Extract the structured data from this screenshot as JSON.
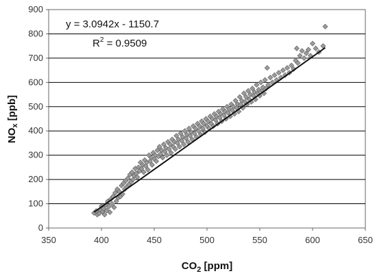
{
  "chart_data": {
    "type": "scatter",
    "title": "",
    "xlabel_main": "CO",
    "xlabel_sub": "2",
    "xlabel_unit": " [ppm]",
    "ylabel_main": "NO",
    "ylabel_sub": "x",
    "ylabel_unit": " [ppb]",
    "xlim": [
      350,
      650
    ],
    "ylim": [
      0,
      900
    ],
    "xticks": [
      350,
      400,
      450,
      500,
      550,
      600,
      650
    ],
    "yticks": [
      0,
      100,
      200,
      300,
      400,
      500,
      600,
      700,
      800,
      900
    ],
    "grid": "horizontal",
    "marker_color": "#9b9b9b",
    "marker_edge_color": "#5a5a5a",
    "trendline": {
      "slope": 3.0942,
      "intercept": -1150.7,
      "x_range": [
        393,
        612
      ],
      "equation_label": "y = 3.0942x - 1150.7",
      "r2_prefix": "R",
      "r2_sup": "2",
      "r2_value": " = 0.9509"
    },
    "series": [
      {
        "points": [
          [
            393,
            62
          ],
          [
            395,
            70
          ],
          [
            396,
            55
          ],
          [
            398,
            60
          ],
          [
            399,
            75
          ],
          [
            400,
            90
          ],
          [
            401,
            68
          ],
          [
            402,
            80
          ],
          [
            403,
            55
          ],
          [
            404,
            95
          ],
          [
            405,
            72
          ],
          [
            406,
            110
          ],
          [
            407,
            88
          ],
          [
            408,
            65
          ],
          [
            409,
            120
          ],
          [
            410,
            100
          ],
          [
            411,
            130
          ],
          [
            412,
            85
          ],
          [
            413,
            145
          ],
          [
            414,
            110
          ],
          [
            415,
            160
          ],
          [
            416,
            125
          ],
          [
            417,
            150
          ],
          [
            418,
            130
          ],
          [
            419,
            175
          ],
          [
            420,
            140
          ],
          [
            421,
            185
          ],
          [
            422,
            160
          ],
          [
            423,
            195
          ],
          [
            424,
            170
          ],
          [
            425,
            205
          ],
          [
            426,
            180
          ],
          [
            427,
            220
          ],
          [
            428,
            190
          ],
          [
            429,
            230
          ],
          [
            430,
            200
          ],
          [
            431,
            215
          ],
          [
            432,
            245
          ],
          [
            433,
            225
          ],
          [
            434,
            210
          ],
          [
            435,
            250
          ],
          [
            436,
            235
          ],
          [
            437,
            270
          ],
          [
            438,
            245
          ],
          [
            439,
            260
          ],
          [
            440,
            230
          ],
          [
            441,
            280
          ],
          [
            442,
            255
          ],
          [
            443,
            270
          ],
          [
            444,
            240
          ],
          [
            445,
            300
          ],
          [
            446,
            275
          ],
          [
            447,
            290
          ],
          [
            448,
            260
          ],
          [
            449,
            310
          ],
          [
            450,
            285
          ],
          [
            451,
            300
          ],
          [
            452,
            275
          ],
          [
            453,
            320
          ],
          [
            454,
            295
          ],
          [
            455,
            335
          ],
          [
            456,
            305
          ],
          [
            457,
            320
          ],
          [
            458,
            290
          ],
          [
            459,
            345
          ],
          [
            460,
            315
          ],
          [
            461,
            330
          ],
          [
            462,
            300
          ],
          [
            463,
            355
          ],
          [
            464,
            325
          ],
          [
            465,
            345
          ],
          [
            466,
            310
          ],
          [
            467,
            365
          ],
          [
            468,
            335
          ],
          [
            469,
            355
          ],
          [
            470,
            325
          ],
          [
            471,
            380
          ],
          [
            472,
            350
          ],
          [
            473,
            365
          ],
          [
            474,
            335
          ],
          [
            475,
            390
          ],
          [
            476,
            360
          ],
          [
            477,
            375
          ],
          [
            478,
            345
          ],
          [
            479,
            400
          ],
          [
            480,
            370
          ],
          [
            481,
            385
          ],
          [
            482,
            355
          ],
          [
            483,
            410
          ],
          [
            484,
            380
          ],
          [
            485,
            395
          ],
          [
            486,
            365
          ],
          [
            487,
            420
          ],
          [
            488,
            390
          ],
          [
            489,
            410
          ],
          [
            490,
            375
          ],
          [
            491,
            430
          ],
          [
            492,
            400
          ],
          [
            493,
            420
          ],
          [
            494,
            385
          ],
          [
            495,
            440
          ],
          [
            496,
            410
          ],
          [
            497,
            430
          ],
          [
            498,
            395
          ],
          [
            499,
            450
          ],
          [
            500,
            420
          ],
          [
            501,
            440
          ],
          [
            502,
            410
          ],
          [
            503,
            460
          ],
          [
            504,
            430
          ],
          [
            505,
            450
          ],
          [
            506,
            420
          ],
          [
            507,
            470
          ],
          [
            508,
            445
          ],
          [
            509,
            460
          ],
          [
            510,
            430
          ],
          [
            511,
            480
          ],
          [
            512,
            455
          ],
          [
            513,
            470
          ],
          [
            514,
            440
          ],
          [
            515,
            490
          ],
          [
            516,
            465
          ],
          [
            517,
            480
          ],
          [
            518,
            450
          ],
          [
            519,
            500
          ],
          [
            520,
            475
          ],
          [
            521,
            490
          ],
          [
            522,
            460
          ],
          [
            523,
            510
          ],
          [
            524,
            485
          ],
          [
            525,
            500
          ],
          [
            526,
            470
          ],
          [
            527,
            525
          ],
          [
            528,
            495
          ],
          [
            529,
            510
          ],
          [
            530,
            480
          ],
          [
            531,
            540
          ],
          [
            532,
            510
          ],
          [
            533,
            525
          ],
          [
            534,
            495
          ],
          [
            535,
            555
          ],
          [
            536,
            520
          ],
          [
            537,
            540
          ],
          [
            538,
            510
          ],
          [
            539,
            565
          ],
          [
            540,
            530
          ],
          [
            541,
            550
          ],
          [
            542,
            520
          ],
          [
            543,
            575
          ],
          [
            544,
            545
          ],
          [
            545,
            560
          ],
          [
            546,
            530
          ],
          [
            547,
            590
          ],
          [
            548,
            555
          ],
          [
            549,
            570
          ],
          [
            550,
            545
          ],
          [
            551,
            600
          ],
          [
            552,
            565
          ],
          [
            553,
            580
          ],
          [
            554,
            555
          ],
          [
            555,
            610
          ],
          [
            556,
            575
          ],
          [
            557,
            660
          ],
          [
            558,
            590
          ],
          [
            560,
            620
          ],
          [
            562,
            600
          ],
          [
            564,
            630
          ],
          [
            566,
            610
          ],
          [
            568,
            640
          ],
          [
            570,
            620
          ],
          [
            572,
            650
          ],
          [
            574,
            630
          ],
          [
            576,
            660
          ],
          [
            578,
            640
          ],
          [
            580,
            670
          ],
          [
            582,
            655
          ],
          [
            584,
            690
          ],
          [
            585,
            740
          ],
          [
            586,
            680
          ],
          [
            588,
            710
          ],
          [
            590,
            730
          ],
          [
            592,
            700
          ],
          [
            594,
            720
          ],
          [
            596,
            735
          ],
          [
            598,
            710
          ],
          [
            600,
            760
          ],
          [
            603,
            740
          ],
          [
            606,
            725
          ],
          [
            610,
            750
          ],
          [
            612,
            830
          ]
        ]
      }
    ]
  }
}
